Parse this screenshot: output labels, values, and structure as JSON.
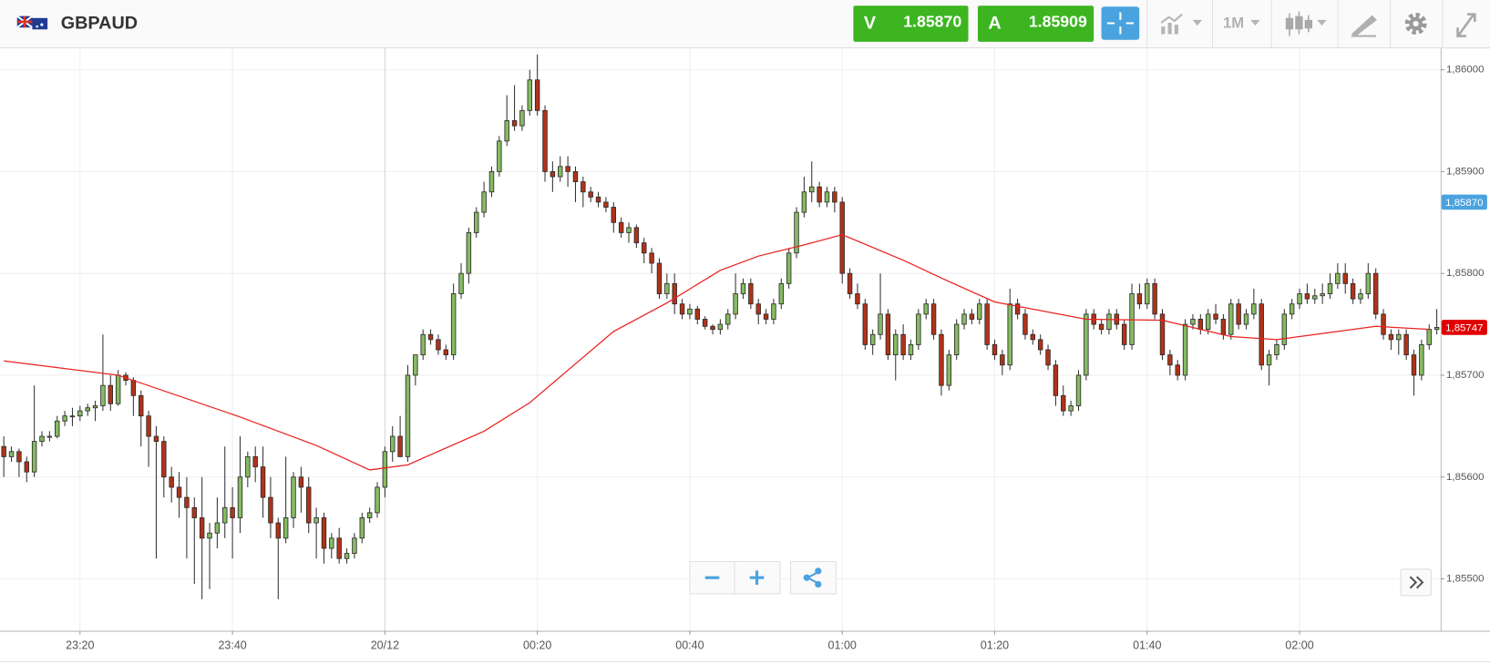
{
  "header": {
    "symbol": "GBPAUD",
    "sell": {
      "label": "V",
      "price": "1.85870"
    },
    "buy": {
      "label": "A",
      "price": "1.85909"
    },
    "timeframe": "1M"
  },
  "chart_data": {
    "type": "candlestick",
    "up_color": "#86bb62",
    "down_color": "#b23218",
    "wick_color": "#333333",
    "grid": true,
    "xlim": [
      -50.5,
      138.5
    ],
    "xticks": [
      {
        "value": -40,
        "label": "23:20"
      },
      {
        "value": -20,
        "label": "23:40"
      },
      {
        "value": 0,
        "label": "20/12"
      },
      {
        "value": 20,
        "label": "00:20"
      },
      {
        "value": 40,
        "label": "00:40"
      },
      {
        "value": 60,
        "label": "01:00"
      },
      {
        "value": 80,
        "label": "01:20"
      },
      {
        "value": 100,
        "label": "01:40"
      },
      {
        "value": 120,
        "label": "02:00"
      }
    ],
    "ylim": [
      1.85449,
      1.86021
    ],
    "yticks": [
      {
        "value": 1.855,
        "label": "1,85500"
      },
      {
        "value": 1.856,
        "label": "1,85600"
      },
      {
        "value": 1.857,
        "label": "1,85700"
      },
      {
        "value": 1.858,
        "label": "1,85800"
      },
      {
        "value": 1.859,
        "label": "1,85900"
      },
      {
        "value": 1.86,
        "label": "1,86000"
      }
    ],
    "price_markers": [
      {
        "value": 1.8587,
        "label": "1,85870",
        "color": "#4aa3df"
      },
      {
        "value": 1.85747,
        "label": "1,85747",
        "color": "#e00000"
      }
    ],
    "x": [
      -50,
      -49,
      -48,
      -47,
      -46,
      -45,
      -44,
      -43,
      -42,
      -41,
      -40,
      -39,
      -38,
      -37,
      -36,
      -35,
      -34,
      -33,
      -32,
      -31,
      -30,
      -29,
      -28,
      -27,
      -26,
      -25,
      -24,
      -23,
      -22,
      -21,
      -20,
      -19,
      -18,
      -17,
      -16,
      -15,
      -14,
      -13,
      -12,
      -11,
      -10,
      -9,
      -8,
      -7,
      -6,
      -5,
      -4,
      -3,
      -2,
      -1,
      0,
      1,
      2,
      3,
      4,
      5,
      6,
      7,
      8,
      9,
      10,
      11,
      12,
      13,
      14,
      15,
      16,
      17,
      18,
      19,
      20,
      21,
      22,
      23,
      24,
      25,
      26,
      27,
      28,
      29,
      30,
      31,
      32,
      33,
      34,
      35,
      36,
      37,
      38,
      39,
      40,
      41,
      42,
      43,
      44,
      45,
      46,
      47,
      48,
      49,
      50,
      51,
      52,
      53,
      54,
      55,
      56,
      57,
      58,
      59,
      60,
      61,
      62,
      63,
      64,
      65,
      66,
      67,
      68,
      69,
      70,
      71,
      72,
      73,
      74,
      75,
      76,
      77,
      78,
      79,
      80,
      81,
      82,
      83,
      84,
      85,
      86,
      87,
      88,
      89,
      90,
      91,
      92,
      93,
      94,
      95,
      96,
      97,
      98,
      99,
      100,
      101,
      102,
      103,
      104,
      105,
      106,
      107,
      108,
      109,
      110,
      111,
      112,
      113,
      114,
      115,
      116,
      117,
      118,
      119,
      120,
      121,
      122,
      123,
      124,
      125,
      126,
      127,
      128,
      129,
      130,
      131,
      132,
      133,
      134,
      135,
      136,
      137,
      138
    ],
    "candles": [
      [
        1.8563,
        1.8564,
        1.856,
        1.8562
      ],
      [
        1.8562,
        1.8563,
        1.85615,
        1.85625
      ],
      [
        1.85625,
        1.85628,
        1.856,
        1.85615
      ],
      [
        1.85615,
        1.8562,
        1.85595,
        1.85605
      ],
      [
        1.85605,
        1.8569,
        1.856,
        1.85635
      ],
      [
        1.85635,
        1.85645,
        1.8563,
        1.8564
      ],
      [
        1.8564,
        1.85645,
        1.85635,
        1.8564
      ],
      [
        1.8564,
        1.8566,
        1.85638,
        1.85655
      ],
      [
        1.85655,
        1.85665,
        1.8565,
        1.8566
      ],
      [
        1.8566,
        1.85668,
        1.8565,
        1.8566
      ],
      [
        1.8566,
        1.8567,
        1.85655,
        1.85665
      ],
      [
        1.85665,
        1.85672,
        1.8566,
        1.85668
      ],
      [
        1.85668,
        1.85675,
        1.85655,
        1.8567
      ],
      [
        1.8567,
        1.8574,
        1.85665,
        1.8569
      ],
      [
        1.8569,
        1.857,
        1.85665,
        1.85672
      ],
      [
        1.85672,
        1.85705,
        1.8567,
        1.857
      ],
      [
        1.857,
        1.85703,
        1.8569,
        1.85695
      ],
      [
        1.85695,
        1.85698,
        1.8566,
        1.8568
      ],
      [
        1.8568,
        1.85685,
        1.8563,
        1.8566
      ],
      [
        1.8566,
        1.85665,
        1.8561,
        1.8564
      ],
      [
        1.8564,
        1.8565,
        1.8552,
        1.85635
      ],
      [
        1.85635,
        1.8564,
        1.8558,
        1.856
      ],
      [
        1.856,
        1.8561,
        1.85575,
        1.8559
      ],
      [
        1.8559,
        1.85605,
        1.8556,
        1.8558
      ],
      [
        1.8558,
        1.856,
        1.8552,
        1.8557
      ],
      [
        1.8557,
        1.8558,
        1.85495,
        1.8556
      ],
      [
        1.8556,
        1.856,
        1.8548,
        1.8554
      ],
      [
        1.8554,
        1.85555,
        1.8549,
        1.85545
      ],
      [
        1.85545,
        1.8558,
        1.8553,
        1.85555
      ],
      [
        1.85555,
        1.8563,
        1.8554,
        1.8557
      ],
      [
        1.8557,
        1.8559,
        1.8552,
        1.8556
      ],
      [
        1.8556,
        1.8564,
        1.85545,
        1.856
      ],
      [
        1.856,
        1.85625,
        1.8559,
        1.8562
      ],
      [
        1.8562,
        1.8563,
        1.85595,
        1.8561
      ],
      [
        1.8561,
        1.8563,
        1.8556,
        1.8558
      ],
      [
        1.8558,
        1.856,
        1.8554,
        1.85555
      ],
      [
        1.85555,
        1.8556,
        1.8548,
        1.8554
      ],
      [
        1.8554,
        1.8562,
        1.85535,
        1.8556
      ],
      [
        1.8556,
        1.85605,
        1.8555,
        1.856
      ],
      [
        1.856,
        1.8561,
        1.85565,
        1.8559
      ],
      [
        1.8559,
        1.856,
        1.85545,
        1.85555
      ],
      [
        1.85555,
        1.8557,
        1.8552,
        1.8556
      ],
      [
        1.8556,
        1.85565,
        1.85515,
        1.8553
      ],
      [
        1.8553,
        1.85545,
        1.8552,
        1.8554
      ],
      [
        1.8554,
        1.8555,
        1.85515,
        1.8552
      ],
      [
        1.8552,
        1.8553,
        1.85515,
        1.85525
      ],
      [
        1.85525,
        1.85545,
        1.8552,
        1.8554
      ],
      [
        1.8554,
        1.85565,
        1.85535,
        1.8556
      ],
      [
        1.8556,
        1.8557,
        1.85555,
        1.85565
      ],
      [
        1.85565,
        1.85595,
        1.8556,
        1.8559
      ],
      [
        1.8559,
        1.8563,
        1.8558,
        1.85625
      ],
      [
        1.85625,
        1.8565,
        1.85615,
        1.8564
      ],
      [
        1.8564,
        1.8566,
        1.8562,
        1.8562
      ],
      [
        1.8562,
        1.8571,
        1.85615,
        1.857
      ],
      [
        1.857,
        1.8572,
        1.8569,
        1.8572
      ],
      [
        1.8572,
        1.85745,
        1.85715,
        1.8574
      ],
      [
        1.8574,
        1.85745,
        1.8573,
        1.85735
      ],
      [
        1.85735,
        1.8574,
        1.8572,
        1.85725
      ],
      [
        1.85725,
        1.8573,
        1.85715,
        1.8572
      ],
      [
        1.8572,
        1.8579,
        1.85715,
        1.8578
      ],
      [
        1.8578,
        1.8581,
        1.85775,
        1.858
      ],
      [
        1.858,
        1.85845,
        1.8579,
        1.8584
      ],
      [
        1.8584,
        1.85865,
        1.85835,
        1.8586
      ],
      [
        1.8586,
        1.8589,
        1.85855,
        1.8588
      ],
      [
        1.8588,
        1.85905,
        1.85875,
        1.859
      ],
      [
        1.859,
        1.85935,
        1.85895,
        1.8593
      ],
      [
        1.8593,
        1.85975,
        1.85925,
        1.8595
      ],
      [
        1.8595,
        1.85985,
        1.8594,
        1.85945
      ],
      [
        1.85945,
        1.85965,
        1.8594,
        1.8596
      ],
      [
        1.8596,
        1.86,
        1.85955,
        1.8599
      ],
      [
        1.8599,
        1.86015,
        1.85955,
        1.8596
      ],
      [
        1.8596,
        1.85965,
        1.8589,
        1.859
      ],
      [
        1.859,
        1.8591,
        1.8588,
        1.85895
      ],
      [
        1.85895,
        1.85915,
        1.8589,
        1.85905
      ],
      [
        1.85905,
        1.85915,
        1.85885,
        1.859
      ],
      [
        1.859,
        1.85905,
        1.8587,
        1.8589
      ],
      [
        1.8589,
        1.85895,
        1.85865,
        1.8588
      ],
      [
        1.8588,
        1.85885,
        1.8587,
        1.85875
      ],
      [
        1.85875,
        1.8588,
        1.85865,
        1.8587
      ],
      [
        1.8587,
        1.85875,
        1.8586,
        1.85865
      ],
      [
        1.85865,
        1.8587,
        1.8584,
        1.8585
      ],
      [
        1.8585,
        1.85855,
        1.85835,
        1.8584
      ],
      [
        1.8584,
        1.8585,
        1.8583,
        1.85845
      ],
      [
        1.85845,
        1.85848,
        1.85825,
        1.8583
      ],
      [
        1.8583,
        1.85835,
        1.8581,
        1.8582
      ],
      [
        1.8582,
        1.85825,
        1.858,
        1.8581
      ],
      [
        1.8581,
        1.85815,
        1.85775,
        1.8578
      ],
      [
        1.8578,
        1.858,
        1.85775,
        1.8579
      ],
      [
        1.8579,
        1.858,
        1.8576,
        1.8577
      ],
      [
        1.8577,
        1.85775,
        1.85755,
        1.8576
      ],
      [
        1.8576,
        1.8577,
        1.85755,
        1.85765
      ],
      [
        1.85765,
        1.85768,
        1.8575,
        1.85755
      ],
      [
        1.85755,
        1.85758,
        1.85745,
        1.85748
      ],
      [
        1.85748,
        1.8575,
        1.8574,
        1.85745
      ],
      [
        1.85745,
        1.85755,
        1.8574,
        1.8575
      ],
      [
        1.8575,
        1.85765,
        1.85745,
        1.8576
      ],
      [
        1.8576,
        1.858,
        1.85755,
        1.8578
      ],
      [
        1.8578,
        1.85795,
        1.85775,
        1.8579
      ],
      [
        1.8579,
        1.85795,
        1.85765,
        1.8577
      ],
      [
        1.8577,
        1.85775,
        1.8575,
        1.8576
      ],
      [
        1.8576,
        1.85765,
        1.8575,
        1.85755
      ],
      [
        1.85755,
        1.85775,
        1.8575,
        1.8577
      ],
      [
        1.8577,
        1.85795,
        1.85765,
        1.8579
      ],
      [
        1.8579,
        1.85825,
        1.85785,
        1.8582
      ],
      [
        1.8582,
        1.85865,
        1.85815,
        1.8586
      ],
      [
        1.8586,
        1.85895,
        1.85855,
        1.8588
      ],
      [
        1.8588,
        1.8591,
        1.8587,
        1.85885
      ],
      [
        1.85885,
        1.8589,
        1.85865,
        1.8587
      ],
      [
        1.8587,
        1.85885,
        1.85865,
        1.8588
      ],
      [
        1.8588,
        1.85885,
        1.8586,
        1.8587
      ],
      [
        1.8587,
        1.85875,
        1.8579,
        1.858
      ],
      [
        1.858,
        1.85805,
        1.85775,
        1.8578
      ],
      [
        1.8578,
        1.8579,
        1.85765,
        1.8577
      ],
      [
        1.8577,
        1.85775,
        1.85725,
        1.8573
      ],
      [
        1.8573,
        1.85745,
        1.8572,
        1.8574
      ],
      [
        1.8574,
        1.858,
        1.85735,
        1.8576
      ],
      [
        1.8576,
        1.85765,
        1.85715,
        1.8572
      ],
      [
        1.8572,
        1.85745,
        1.85695,
        1.8574
      ],
      [
        1.8574,
        1.8575,
        1.85715,
        1.8572
      ],
      [
        1.8572,
        1.85735,
        1.85715,
        1.8573
      ],
      [
        1.8573,
        1.85765,
        1.85725,
        1.8576
      ],
      [
        1.8576,
        1.85775,
        1.85755,
        1.8577
      ],
      [
        1.8577,
        1.85775,
        1.85735,
        1.8574
      ],
      [
        1.8574,
        1.85745,
        1.8568,
        1.8569
      ],
      [
        1.8569,
        1.85725,
        1.85685,
        1.8572
      ],
      [
        1.8572,
        1.85755,
        1.85715,
        1.8575
      ],
      [
        1.8575,
        1.85765,
        1.85745,
        1.8576
      ],
      [
        1.8576,
        1.85765,
        1.8575,
        1.85755
      ],
      [
        1.85755,
        1.85775,
        1.8575,
        1.8577
      ],
      [
        1.8577,
        1.85775,
        1.85725,
        1.8573
      ],
      [
        1.8573,
        1.85735,
        1.85715,
        1.8572
      ],
      [
        1.8572,
        1.85725,
        1.857,
        1.8571
      ],
      [
        1.8571,
        1.85785,
        1.85705,
        1.8577
      ],
      [
        1.8577,
        1.85775,
        1.85755,
        1.8576
      ],
      [
        1.8576,
        1.85765,
        1.85735,
        1.8574
      ],
      [
        1.8574,
        1.85745,
        1.8573,
        1.85735
      ],
      [
        1.85735,
        1.8574,
        1.8572,
        1.85725
      ],
      [
        1.85725,
        1.8573,
        1.85705,
        1.8571
      ],
      [
        1.8571,
        1.85715,
        1.8567,
        1.8568
      ],
      [
        1.8568,
        1.8569,
        1.8566,
        1.85665
      ],
      [
        1.85665,
        1.85675,
        1.8566,
        1.8567
      ],
      [
        1.8567,
        1.85705,
        1.85665,
        1.857
      ],
      [
        1.857,
        1.85765,
        1.85695,
        1.8576
      ],
      [
        1.8576,
        1.85765,
        1.85745,
        1.8575
      ],
      [
        1.8575,
        1.85755,
        1.8574,
        1.85745
      ],
      [
        1.85745,
        1.85765,
        1.8574,
        1.8576
      ],
      [
        1.8576,
        1.85765,
        1.85745,
        1.8575
      ],
      [
        1.8575,
        1.85755,
        1.85725,
        1.8573
      ],
      [
        1.8573,
        1.8579,
        1.85725,
        1.8578
      ],
      [
        1.8578,
        1.8579,
        1.85765,
        1.8577
      ],
      [
        1.8577,
        1.85795,
        1.85765,
        1.8579
      ],
      [
        1.8579,
        1.85795,
        1.85755,
        1.8576
      ],
      [
        1.8576,
        1.85765,
        1.85715,
        1.8572
      ],
      [
        1.8572,
        1.85725,
        1.857,
        1.8571
      ],
      [
        1.8571,
        1.85715,
        1.85695,
        1.857
      ],
      [
        1.857,
        1.85755,
        1.85695,
        1.8575
      ],
      [
        1.8575,
        1.8576,
        1.85745,
        1.85755
      ],
      [
        1.85755,
        1.8576,
        1.8574,
        1.85745
      ],
      [
        1.85745,
        1.85765,
        1.8574,
        1.8576
      ],
      [
        1.8576,
        1.8577,
        1.8575,
        1.85755
      ],
      [
        1.85755,
        1.8576,
        1.85735,
        1.8574
      ],
      [
        1.8574,
        1.85775,
        1.85735,
        1.8577
      ],
      [
        1.8577,
        1.85775,
        1.85745,
        1.8575
      ],
      [
        1.8575,
        1.85765,
        1.85745,
        1.8576
      ],
      [
        1.8576,
        1.85785,
        1.85755,
        1.8577
      ],
      [
        1.8577,
        1.85775,
        1.85705,
        1.8571
      ],
      [
        1.8571,
        1.85725,
        1.8569,
        1.8572
      ],
      [
        1.8572,
        1.85735,
        1.85715,
        1.8573
      ],
      [
        1.8573,
        1.85765,
        1.85725,
        1.8576
      ],
      [
        1.8576,
        1.85775,
        1.85755,
        1.8577
      ],
      [
        1.8577,
        1.85785,
        1.85765,
        1.8578
      ],
      [
        1.8578,
        1.8579,
        1.8577,
        1.85775
      ],
      [
        1.85775,
        1.85785,
        1.8577,
        1.85778
      ],
      [
        1.85778,
        1.8579,
        1.8577,
        1.8578
      ],
      [
        1.8578,
        1.858,
        1.85775,
        1.8579
      ],
      [
        1.8579,
        1.8581,
        1.85785,
        1.858
      ],
      [
        1.858,
        1.8581,
        1.8578,
        1.8579
      ],
      [
        1.8579,
        1.85795,
        1.8577,
        1.85775
      ],
      [
        1.85775,
        1.85785,
        1.8577,
        1.8578
      ],
      [
        1.8578,
        1.8581,
        1.85775,
        1.858
      ],
      [
        1.858,
        1.85805,
        1.85755,
        1.8576
      ],
      [
        1.8576,
        1.85765,
        1.85735,
        1.8574
      ],
      [
        1.8574,
        1.85745,
        1.85725,
        1.85735
      ],
      [
        1.85735,
        1.85745,
        1.8572,
        1.8574
      ],
      [
        1.8574,
        1.85745,
        1.85715,
        1.8572
      ],
      [
        1.8572,
        1.85725,
        1.8568,
        1.857
      ],
      [
        1.857,
        1.85735,
        1.85695,
        1.8573
      ],
      [
        1.8573,
        1.8575,
        1.85725,
        1.85745
      ],
      [
        1.85745,
        1.85765,
        1.8574,
        1.85747
      ]
    ],
    "moving_average": {
      "color": "#e8231f",
      "x": [
        -50,
        -35,
        -19,
        -9,
        -2,
        3,
        13,
        19,
        30,
        37,
        44,
        49,
        55,
        60,
        68,
        74,
        80,
        92,
        102,
        111,
        117,
        123,
        130,
        137
      ],
      "values": [
        1.85714,
        1.857,
        1.85659,
        1.85631,
        1.85607,
        1.85612,
        1.85645,
        1.85673,
        1.85743,
        1.85771,
        1.85803,
        1.85817,
        1.85828,
        1.85838,
        1.85813,
        1.85792,
        1.85772,
        1.85755,
        1.85754,
        1.85738,
        1.85735,
        1.85741,
        1.85748,
        1.85745
      ]
    }
  }
}
